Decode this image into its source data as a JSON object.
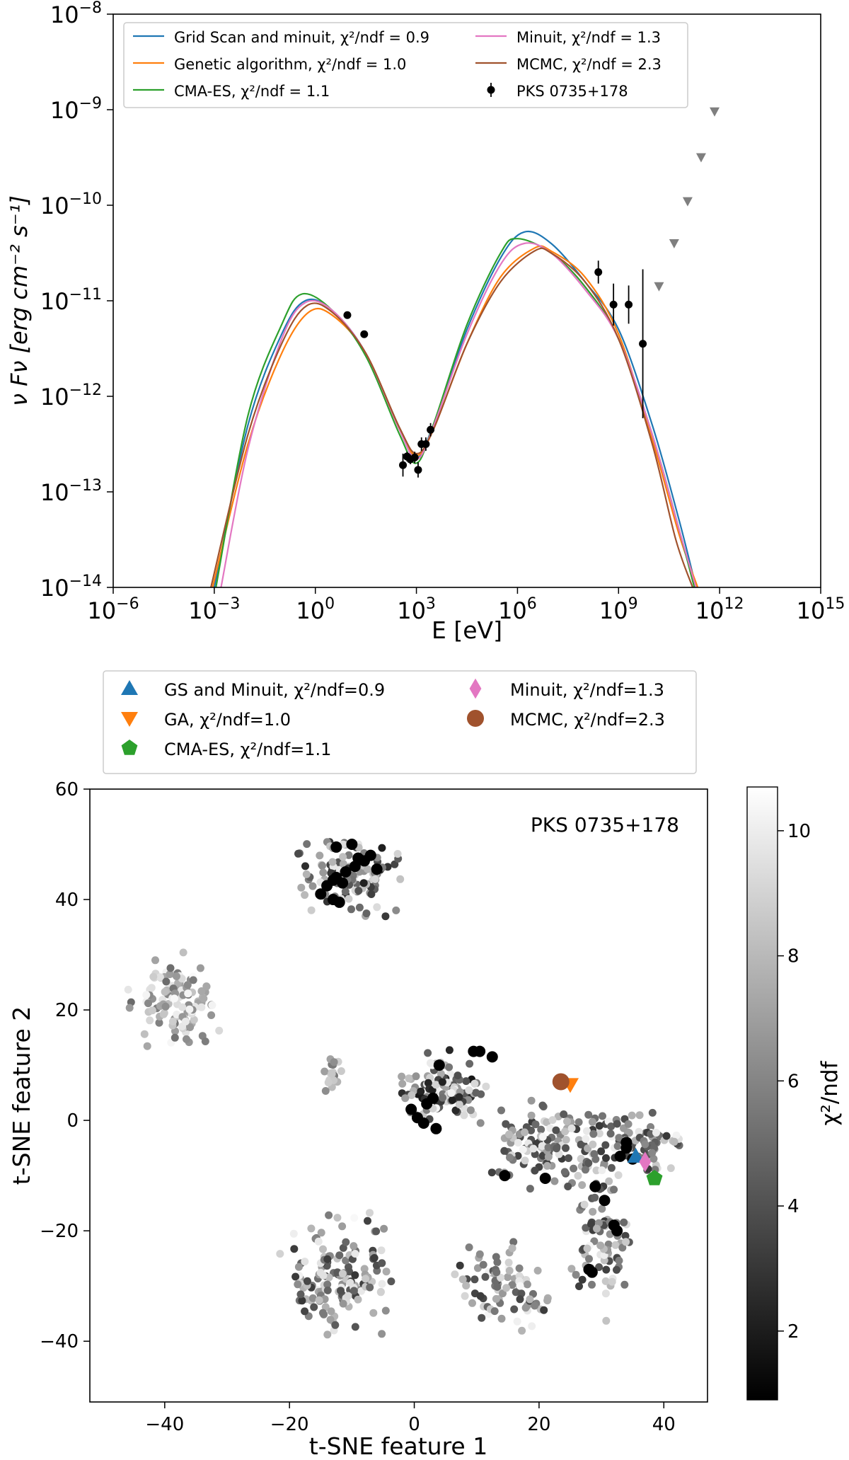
{
  "chart_data": [
    {
      "type": "line",
      "id": "sed",
      "xlabel": "E [eV]",
      "ylabel": "ν Fν [erg cm⁻² s⁻¹]",
      "xscale": "log",
      "yscale": "log",
      "xlim_log10": [
        -6,
        15
      ],
      "ylim_log10": [
        -14,
        -8
      ],
      "x_ticks": [
        {
          "base": "10",
          "exp": "−6",
          "v": -6
        },
        {
          "base": "10",
          "exp": "−3",
          "v": -3
        },
        {
          "base": "10",
          "exp": "0",
          "v": 0
        },
        {
          "base": "10",
          "exp": "3",
          "v": 3
        },
        {
          "base": "10",
          "exp": "6",
          "v": 6
        },
        {
          "base": "10",
          "exp": "9",
          "v": 9
        },
        {
          "base": "10",
          "exp": "12",
          "v": 12
        },
        {
          "base": "10",
          "exp": "15",
          "v": 15
        }
      ],
      "y_ticks": [
        {
          "base": "10",
          "exp": "−8",
          "v": -8
        },
        {
          "base": "10",
          "exp": "−9",
          "v": -9
        },
        {
          "base": "10",
          "exp": "−10",
          "v": -10
        },
        {
          "base": "10",
          "exp": "−11",
          "v": -11
        },
        {
          "base": "10",
          "exp": "−12",
          "v": -12
        },
        {
          "base": "10",
          "exp": "−13",
          "v": -13
        },
        {
          "base": "10",
          "exp": "−14",
          "v": -14
        }
      ],
      "legend": {
        "position": "top",
        "entries": [
          {
            "label": "Grid Scan and minuit, χ²/ndf = 0.9",
            "color": "#1f77b4",
            "kind": "line"
          },
          {
            "label": "Genetic algorithm, χ²/ndf = 1.0",
            "color": "#ff7f0e",
            "kind": "line"
          },
          {
            "label": "CMA-ES, χ²/ndf = 1.1",
            "color": "#2ca02c",
            "kind": "line"
          },
          {
            "label": "Minuit, χ²/ndf = 1.3",
            "color": "#e377c2",
            "kind": "line"
          },
          {
            "label": "MCMC, χ²/ndf = 2.3",
            "color": "#a0522d",
            "kind": "line"
          },
          {
            "label": "PKS 0735+178",
            "color": "#000000",
            "kind": "point"
          }
        ]
      },
      "series": [
        {
          "name": "Grid Scan and minuit",
          "color": "#1f77b4",
          "x": [
            -3.0,
            -2.0,
            -1.0,
            -0.3,
            0.5,
            1.5,
            2.5,
            3.0,
            3.5,
            4.5,
            5.5,
            6.2,
            7.0,
            8.0,
            9.0,
            10.0,
            10.8,
            11.3
          ],
          "y": [
            -14.0,
            -12.3,
            -11.35,
            -11.0,
            -11.1,
            -11.55,
            -12.35,
            -12.65,
            -12.3,
            -11.3,
            -10.55,
            -10.28,
            -10.4,
            -10.8,
            -11.3,
            -12.3,
            -13.3,
            -14.0
          ]
        },
        {
          "name": "Genetic algorithm",
          "color": "#ff7f0e",
          "x": [
            -3.05,
            -2.0,
            -1.0,
            -0.2,
            0.5,
            1.5,
            2.5,
            3.0,
            3.5,
            4.5,
            5.5,
            6.5,
            7.0,
            8.0,
            9.0,
            10.0,
            10.8,
            11.35
          ],
          "y": [
            -14.0,
            -12.5,
            -11.55,
            -11.12,
            -11.15,
            -11.55,
            -12.35,
            -12.62,
            -12.35,
            -11.45,
            -10.75,
            -10.45,
            -10.48,
            -10.75,
            -11.35,
            -12.45,
            -13.45,
            -14.0
          ]
        },
        {
          "name": "CMA-ES",
          "color": "#2ca02c",
          "x": [
            -2.95,
            -2.0,
            -1.0,
            -0.4,
            0.5,
            1.5,
            2.5,
            3.0,
            3.5,
            4.5,
            5.5,
            6.0,
            7.0,
            8.0,
            9.0,
            10.0,
            10.8,
            11.25
          ],
          "y": [
            -14.0,
            -12.2,
            -11.25,
            -10.93,
            -11.1,
            -11.58,
            -12.4,
            -12.7,
            -12.3,
            -11.25,
            -10.5,
            -10.35,
            -10.5,
            -10.85,
            -11.4,
            -12.4,
            -13.4,
            -14.0
          ]
        },
        {
          "name": "Minuit",
          "color": "#e377c2",
          "x": [
            -2.8,
            -2.0,
            -1.0,
            -0.3,
            0.5,
            1.5,
            2.5,
            3.0,
            3.5,
            4.5,
            5.5,
            6.2,
            7.0,
            8.0,
            9.0,
            10.0,
            10.8,
            11.3
          ],
          "y": [
            -14.0,
            -12.55,
            -11.4,
            -11.02,
            -11.1,
            -11.55,
            -12.35,
            -12.66,
            -12.32,
            -11.35,
            -10.62,
            -10.4,
            -10.5,
            -10.88,
            -11.4,
            -12.4,
            -13.4,
            -14.0
          ]
        },
        {
          "name": "MCMC",
          "color": "#a0522d",
          "x": [
            -3.1,
            -2.0,
            -1.0,
            -0.25,
            0.5,
            1.5,
            2.5,
            3.0,
            3.5,
            4.5,
            5.5,
            6.5,
            7.0,
            8.0,
            9.0,
            10.0,
            10.7,
            11.2
          ],
          "y": [
            -14.0,
            -12.4,
            -11.45,
            -11.05,
            -11.12,
            -11.55,
            -12.33,
            -12.6,
            -12.35,
            -11.45,
            -10.8,
            -10.48,
            -10.5,
            -10.8,
            -11.4,
            -12.5,
            -13.5,
            -14.0
          ]
        }
      ],
      "points": [
        {
          "x": 0.95,
          "y": -11.15,
          "err": 0.0
        },
        {
          "x": 1.45,
          "y": -11.35,
          "err": 0.0
        },
        {
          "x": 2.6,
          "y": -12.72,
          "err": 0.12
        },
        {
          "x": 2.72,
          "y": -12.63,
          "err": 0.05
        },
        {
          "x": 2.82,
          "y": -12.66,
          "err": 0.05
        },
        {
          "x": 2.95,
          "y": -12.64,
          "err": 0.06
        },
        {
          "x": 3.05,
          "y": -12.77,
          "err": 0.08
        },
        {
          "x": 3.15,
          "y": -12.5,
          "err": 0.07
        },
        {
          "x": 3.28,
          "y": -12.5,
          "err": 0.07
        },
        {
          "x": 3.42,
          "y": -12.35,
          "err": 0.07
        },
        {
          "x": 8.4,
          "y": -10.7,
          "err": 0.12
        },
        {
          "x": 8.85,
          "y": -11.04,
          "err": 0.22
        },
        {
          "x": 9.3,
          "y": -11.04,
          "err": 0.2
        },
        {
          "x": 9.72,
          "y": -11.45,
          "err": 0.78
        }
      ],
      "upper_limits": [
        {
          "x": 10.2,
          "y": -10.85
        },
        {
          "x": 10.65,
          "y": -10.4
        },
        {
          "x": 11.05,
          "y": -9.96
        },
        {
          "x": 11.45,
          "y": -9.5
        },
        {
          "x": 11.85,
          "y": -9.02
        }
      ]
    },
    {
      "type": "scatter",
      "id": "tsne",
      "title": "",
      "annotation": "PKS 0735+178",
      "xlabel": "t-SNE feature 1",
      "ylabel": "t-SNE feature 2",
      "xlim": [
        -52,
        47
      ],
      "ylim": [
        -51,
        60
      ],
      "x_ticks": [
        -40,
        -20,
        0,
        20,
        40
      ],
      "y_ticks": [
        -40,
        -20,
        0,
        20,
        40,
        60
      ],
      "tick_labels_x": [
        "−40",
        "−20",
        "0",
        "20",
        "40"
      ],
      "tick_labels_y": [
        "−40",
        "−20",
        "0",
        "20",
        "40",
        "60"
      ],
      "colorbar": {
        "label": "χ²/ndf",
        "range": [
          0.9,
          10.7
        ],
        "ticks": [
          2,
          4,
          6,
          8,
          10
        ],
        "tick_labels": [
          "2",
          "4",
          "6",
          "8",
          "10"
        ],
        "cmap": "gray"
      },
      "legend": {
        "position": "top",
        "entries": [
          {
            "label": "GS and Minuit, χ²/ndf=0.9",
            "color": "#1f77b4",
            "marker": "triangle-up"
          },
          {
            "label": "GA, χ²/ndf=1.0",
            "color": "#ff7f0e",
            "marker": "triangle-down"
          },
          {
            "label": "CMA-ES, χ²/ndf=1.1",
            "color": "#2ca02c",
            "marker": "pentagon"
          },
          {
            "label": "Minuit, χ²/ndf=1.3",
            "color": "#e377c2",
            "marker": "diamond"
          },
          {
            "label": "MCMC, χ²/ndf=2.3",
            "color": "#a0522d",
            "marker": "circle"
          }
        ]
      },
      "highlighted": [
        {
          "name": "GS and Minuit",
          "x": 35.5,
          "y": -6.5,
          "color": "#1f77b4",
          "marker": "triangle-up"
        },
        {
          "name": "GA",
          "x": 25,
          "y": 6.5,
          "color": "#ff7f0e",
          "marker": "triangle-down"
        },
        {
          "name": "CMA-ES",
          "x": 38.5,
          "y": -10.5,
          "color": "#2ca02c",
          "marker": "pentagon"
        },
        {
          "name": "Minuit",
          "x": 37,
          "y": -7.5,
          "color": "#e377c2",
          "marker": "diamond"
        },
        {
          "name": "MCMC",
          "x": 23.5,
          "y": 7,
          "color": "#a0522d",
          "marker": "circle"
        }
      ],
      "clusters": [
        {
          "cx": -10,
          "cy": 44,
          "sx": 7,
          "sy": 6,
          "n": 110,
          "cmin": 2,
          "cmax": 10
        },
        {
          "cx": -38,
          "cy": 22,
          "sx": 5.5,
          "sy": 6.5,
          "n": 120,
          "cmin": 5,
          "cmax": 10.5
        },
        {
          "cx": 4,
          "cy": 6,
          "sx": 6,
          "sy": 5,
          "n": 110,
          "cmin": 1.5,
          "cmax": 10.5
        },
        {
          "cx": 22,
          "cy": -5,
          "sx": 10,
          "sy": 7,
          "n": 150,
          "cmin": 3,
          "cmax": 10.5
        },
        {
          "cx": -12,
          "cy": -28,
          "sx": 7,
          "sy": 8,
          "n": 150,
          "cmin": 3,
          "cmax": 10.5
        },
        {
          "cx": 14,
          "cy": -30,
          "sx": 7,
          "sy": 6,
          "n": 90,
          "cmin": 3,
          "cmax": 10.5
        },
        {
          "cx": 30,
          "cy": -22,
          "sx": 4,
          "sy": 10,
          "n": 80,
          "cmin": 3,
          "cmax": 10.5
        },
        {
          "cx": 36,
          "cy": -4,
          "sx": 5,
          "sy": 5,
          "n": 70,
          "cmin": 3,
          "cmax": 10.5
        },
        {
          "cx": -13,
          "cy": 9,
          "sx": 1.2,
          "sy": 3,
          "n": 20,
          "cmin": 5,
          "cmax": 9
        }
      ],
      "low_points": [
        [
          -15,
          41
        ],
        [
          -14,
          42.5
        ],
        [
          -13,
          43.5
        ],
        [
          -12.5,
          44
        ],
        [
          -11,
          45
        ],
        [
          -9.5,
          46
        ],
        [
          -8,
          47
        ],
        [
          -7,
          48
        ],
        [
          -12,
          39.5
        ],
        [
          -13,
          40
        ],
        [
          -6,
          45.5
        ],
        [
          -10,
          50
        ],
        [
          -12.5,
          49.5
        ],
        [
          -9,
          47.5
        ],
        [
          -11.5,
          43
        ],
        [
          -0.5,
          2
        ],
        [
          0.5,
          0.5
        ],
        [
          2,
          3
        ],
        [
          3,
          4
        ],
        [
          3.5,
          -1.5
        ],
        [
          4,
          10
        ],
        [
          10.5,
          12.5
        ],
        [
          12.5,
          11.5
        ],
        [
          9.5,
          12.5
        ],
        [
          1.5,
          -0.5
        ],
        [
          14.5,
          -10
        ],
        [
          21,
          -10.5
        ],
        [
          29,
          -12
        ],
        [
          30.5,
          -14.5
        ],
        [
          32,
          -19
        ],
        [
          32.5,
          -20
        ],
        [
          28,
          -27
        ],
        [
          28.5,
          -27.5
        ],
        [
          34,
          -5
        ],
        [
          35,
          -7
        ],
        [
          34,
          -4
        ],
        [
          33,
          -6.5
        ]
      ]
    }
  ]
}
